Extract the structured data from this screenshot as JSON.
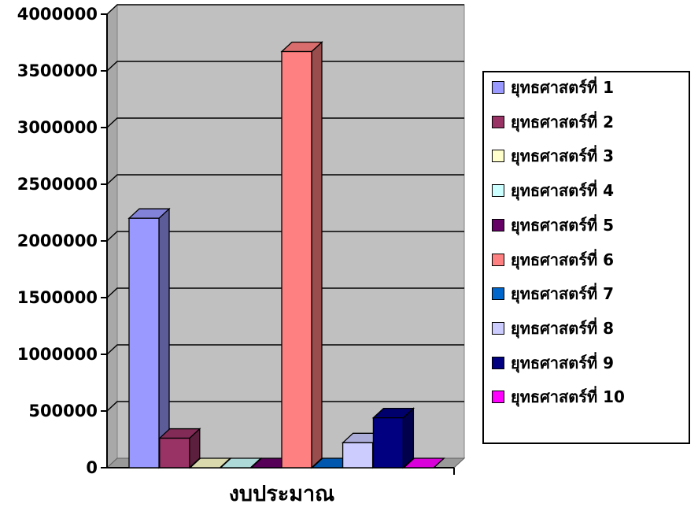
{
  "chart_data": {
    "type": "bar",
    "categories": [
      "งบประมาณ"
    ],
    "xlabel": "งบประมาณ",
    "ylabel": "",
    "title": "",
    "ylim": [
      0,
      4000000
    ],
    "yticks": [
      0,
      500000,
      1000000,
      1500000,
      2000000,
      2500000,
      3000000,
      3500000,
      4000000
    ],
    "ytick_labels": [
      "0",
      "500000",
      "1000000",
      "1500000",
      "2000000",
      "2500000",
      "3000000",
      "3500000",
      "4000000"
    ],
    "grid": true,
    "legend_position": "right",
    "series": [
      {
        "name": "ยุทธศาสตร์ที่ 1",
        "values": [
          2200000
        ],
        "color": "#9999ff"
      },
      {
        "name": "ยุทธศาสตร์ที่ 2",
        "values": [
          260000
        ],
        "color": "#993366"
      },
      {
        "name": "ยุทธศาสตร์ที่ 3",
        "values": [
          0
        ],
        "color": "#ffffcc"
      },
      {
        "name": "ยุทธศาสตร์ที่ 4",
        "values": [
          0
        ],
        "color": "#ccffff"
      },
      {
        "name": "ยุทธศาสตร์ที่ 5",
        "values": [
          0
        ],
        "color": "#660066"
      },
      {
        "name": "ยุทธศาสตร์ที่ 6",
        "values": [
          3670000
        ],
        "color": "#ff8080"
      },
      {
        "name": "ยุทธศาสตร์ที่ 7",
        "values": [
          0
        ],
        "color": "#0066cc"
      },
      {
        "name": "ยุทธศาสตร์ที่ 8",
        "values": [
          220000
        ],
        "color": "#ccccff"
      },
      {
        "name": "ยุทธศาสตร์ที่ 9",
        "values": [
          440000
        ],
        "color": "#000080"
      },
      {
        "name": "ยุทธศาสตร์ที่ 10",
        "values": [
          0
        ],
        "color": "#ff00ff"
      }
    ]
  }
}
